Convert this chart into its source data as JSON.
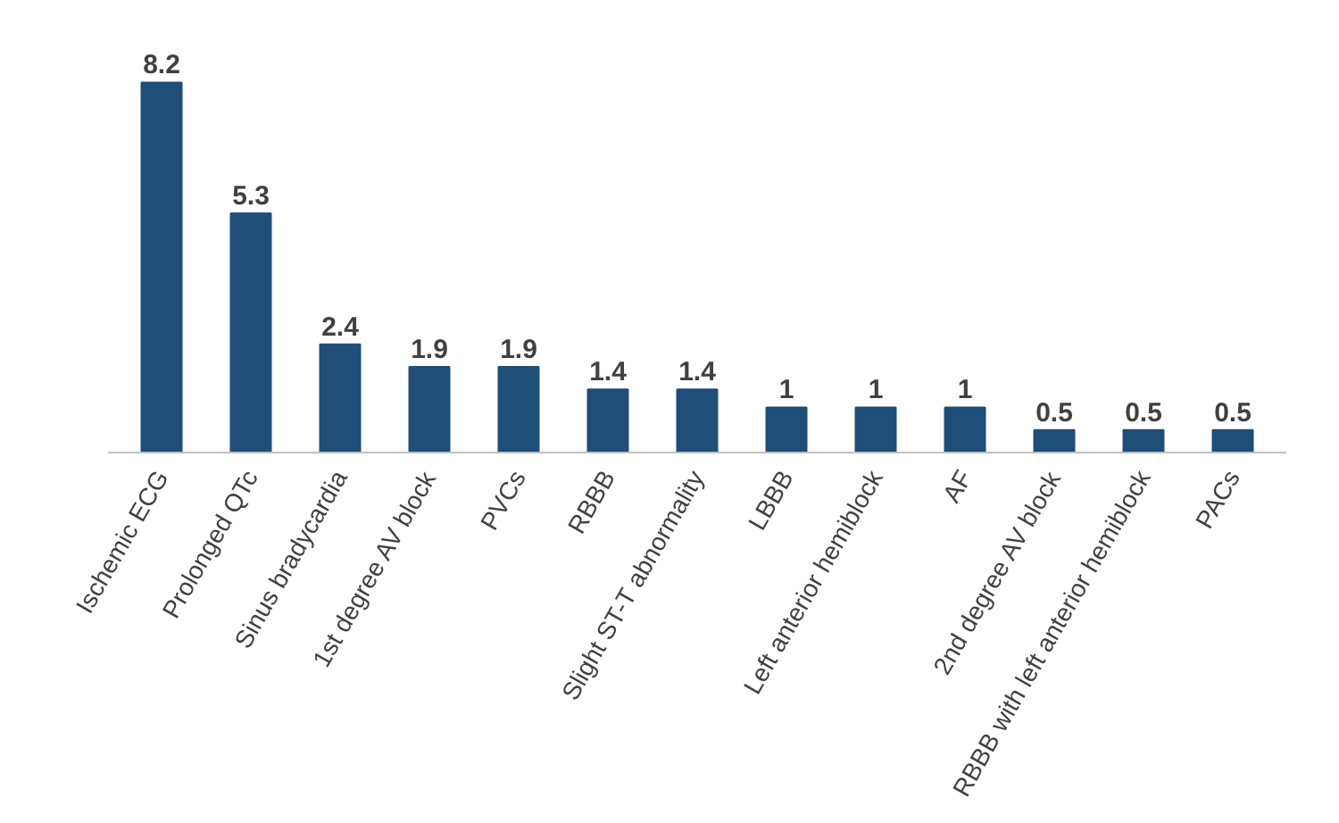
{
  "chart_data": {
    "type": "bar",
    "categories": [
      "Ischemic ECG",
      "Prolonged QTc",
      "Sinus bradycardia",
      "1st degree AV block",
      "PVCs",
      "RBBB",
      "Slight ST-T abnormality",
      "LBBB",
      "Left anterior hemiblock",
      "AF",
      "2nd degree AV block",
      "RBBB with left anterior hemiblock",
      "PACs"
    ],
    "values": [
      8.2,
      5.3,
      2.4,
      1.9,
      1.9,
      1.4,
      1.4,
      1,
      1,
      1,
      0.5,
      0.5,
      0.5
    ],
    "color": "#1f4e79",
    "data_labels": true,
    "grid": false
  }
}
